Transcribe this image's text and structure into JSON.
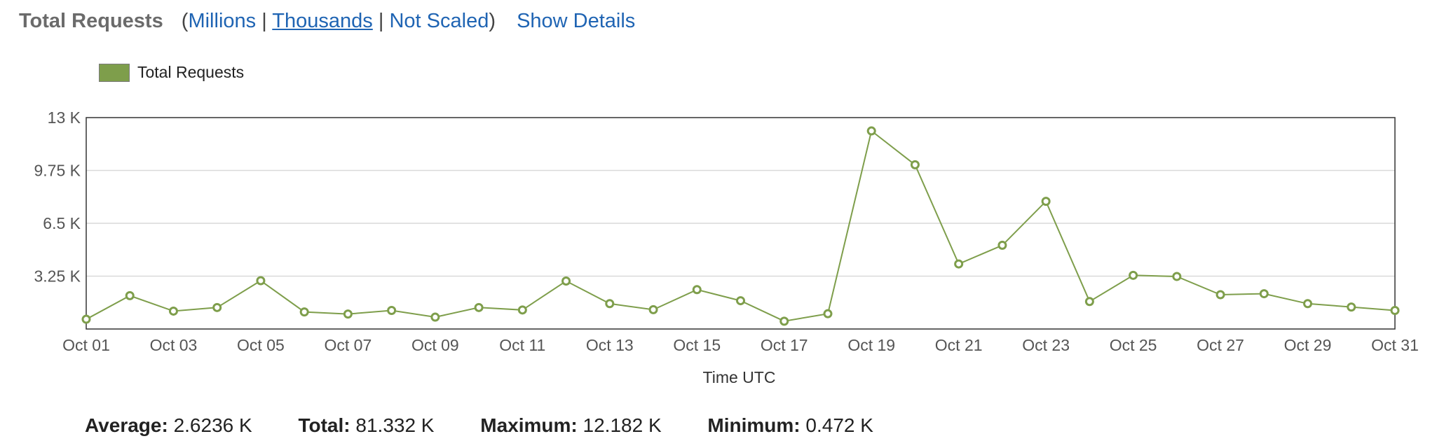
{
  "header": {
    "title": "Total Requests",
    "open_paren": "(",
    "close_paren": ")",
    "sep": "|",
    "scale_millions": "Millions",
    "scale_thousands": "Thousands",
    "scale_not_scaled": "Not Scaled",
    "show_details": "Show Details"
  },
  "legend": {
    "label": "Total Requests"
  },
  "colors": {
    "series": "#7e9e4b",
    "link": "#1f64b3",
    "grid": "#d9d9d9"
  },
  "chart_data": {
    "type": "line",
    "title": "Total Requests",
    "xlabel": "Time UTC",
    "ylabel": "",
    "ylim": [
      0,
      13000
    ],
    "yticks": [
      3250,
      6500,
      9750,
      13000
    ],
    "ytick_labels": [
      "3.25 K",
      "6.5 K",
      "9.75 K",
      "13 K"
    ],
    "x": [
      "Oct 01",
      "Oct 02",
      "Oct 03",
      "Oct 04",
      "Oct 05",
      "Oct 06",
      "Oct 07",
      "Oct 08",
      "Oct 09",
      "Oct 10",
      "Oct 11",
      "Oct 12",
      "Oct 13",
      "Oct 14",
      "Oct 15",
      "Oct 16",
      "Oct 17",
      "Oct 18",
      "Oct 19",
      "Oct 20",
      "Oct 21",
      "Oct 22",
      "Oct 23",
      "Oct 24",
      "Oct 25",
      "Oct 26",
      "Oct 27",
      "Oct 28",
      "Oct 29",
      "Oct 30",
      "Oct 31"
    ],
    "xtick_labels": [
      "Oct 01",
      "Oct 03",
      "Oct 05",
      "Oct 07",
      "Oct 09",
      "Oct 11",
      "Oct 13",
      "Oct 15",
      "Oct 17",
      "Oct 19",
      "Oct 21",
      "Oct 23",
      "Oct 25",
      "Oct 27",
      "Oct 29",
      "Oct 31"
    ],
    "series": [
      {
        "name": "Total Requests",
        "values": [
          600,
          2050,
          1100,
          1320,
          2970,
          1050,
          920,
          1140,
          730,
          1320,
          1170,
          2950,
          1560,
          1190,
          2420,
          1740,
          480,
          940,
          12180,
          10100,
          4000,
          5150,
          7850,
          1690,
          3300,
          3230,
          2110,
          2170,
          1560,
          1350,
          1140
        ]
      }
    ],
    "grid": true,
    "legend_position": "top-left"
  },
  "stats": {
    "average_label": "Average:",
    "average_value": "2.6236 K",
    "total_label": "Total:",
    "total_value": "81.332 K",
    "maximum_label": "Maximum:",
    "maximum_value": "12.182 K",
    "minimum_label": "Minimum:",
    "minimum_value": "0.472 K"
  }
}
